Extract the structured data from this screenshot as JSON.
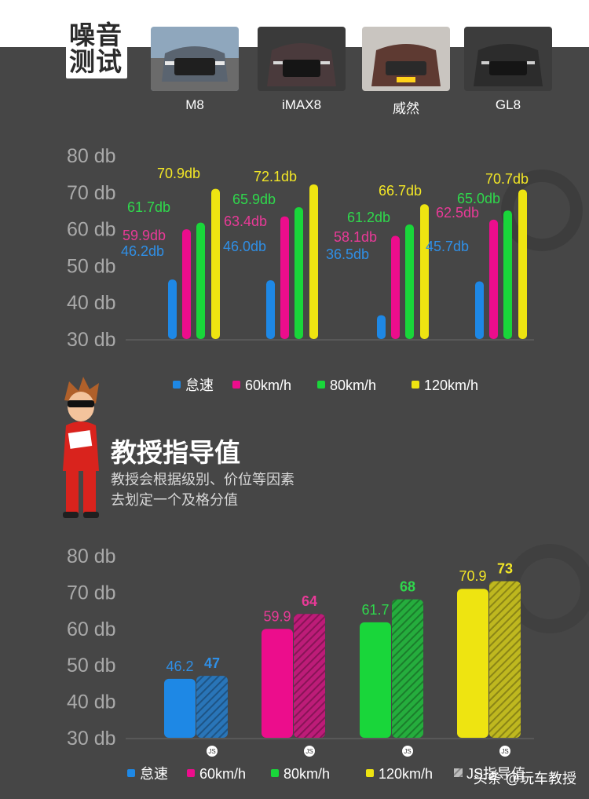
{
  "header": {
    "title_line1": "噪音",
    "title_line2": "测试"
  },
  "cars": [
    {
      "name": "M8"
    },
    {
      "name": "iMAX8"
    },
    {
      "name": "威然"
    },
    {
      "name": "GL8"
    }
  ],
  "colors": {
    "idle": "#1e88e5",
    "kmh60": "#ec0d8c",
    "kmh80": "#19d63a",
    "kmh120": "#eee411",
    "idle_label": "#2f8fe6",
    "kmh60_label": "#e83a97",
    "kmh80_label": "#2fd84c",
    "kmh120_label": "#f2e626",
    "axis_text": "#a9a9a9"
  },
  "chart_data": [
    {
      "type": "bar",
      "categories": [
        "M8",
        "iMAX8",
        "威然",
        "GL8"
      ],
      "series": [
        {
          "name": "怠速",
          "values": [
            46.2,
            46.0,
            36.5,
            45.7
          ]
        },
        {
          "name": "60km/h",
          "values": [
            59.9,
            63.4,
            58.1,
            62.5
          ]
        },
        {
          "name": "80km/h",
          "values": [
            61.7,
            65.9,
            61.2,
            65.0
          ]
        },
        {
          "name": "120km/h",
          "values": [
            70.9,
            72.1,
            66.7,
            70.7
          ]
        }
      ],
      "data_labels": [
        [
          "46.2db",
          "46.0db",
          "36.5db",
          "45.7db"
        ],
        [
          "59.9db",
          "63.4db",
          "58.1db",
          "62.5db"
        ],
        [
          "61.7db",
          "65.9db",
          "61.2db",
          "65.0db"
        ],
        [
          "70.9db",
          "72.1db",
          "66.7db",
          "70.7db"
        ]
      ],
      "yticks": [
        "30 db",
        "40 db",
        "50 db",
        "60 db",
        "70 db",
        "80 db"
      ],
      "ylim": [
        30,
        80
      ],
      "legend": [
        "怠速",
        "60km/h",
        "80km/h",
        "120km/h"
      ],
      "legend_position": "bottom",
      "title": "",
      "xlabel": "",
      "ylabel": ""
    },
    {
      "type": "bar",
      "categories": [
        "怠速",
        "60km/h",
        "80km/h",
        "120km/h"
      ],
      "series": [
        {
          "name": "",
          "values": [
            46.2,
            59.9,
            61.7,
            70.9
          ]
        },
        {
          "name": "JS指导值",
          "values": [
            47,
            64,
            68,
            73
          ]
        }
      ],
      "data_labels": [
        [
          "46.2",
          "59.9",
          "61.7",
          "70.9"
        ],
        [
          "47",
          "64",
          "68",
          "73"
        ]
      ],
      "badge": "JS",
      "yticks": [
        "30 db",
        "40 db",
        "50 db",
        "60 db",
        "70 db",
        "80 db"
      ],
      "ylim": [
        30,
        80
      ],
      "legend": [
        "怠速",
        "60km/h",
        "80km/h",
        "120km/h",
        "JS指导值"
      ],
      "legend_position": "bottom",
      "title": "",
      "xlabel": "",
      "ylabel": ""
    }
  ],
  "professor": {
    "title": "教授指导值",
    "desc_line1": "教授会根据级别、价位等因素",
    "desc_line2": "去划定一个及格分值"
  },
  "watermark": "头条 @玩车教授"
}
